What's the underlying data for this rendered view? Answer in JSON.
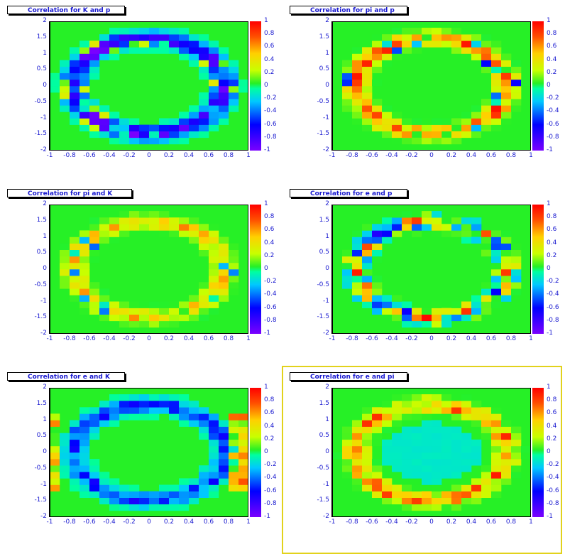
{
  "chart_data": [
    {
      "type": "heatmap",
      "title": "Correlation for K and p",
      "x": [
        -1,
        1
      ],
      "y": [
        -2,
        2
      ],
      "zlim": [
        -1,
        1
      ],
      "pattern": "ring_negative"
    },
    {
      "type": "heatmap",
      "title": "Correlation for pi and p",
      "x": [
        -1,
        1
      ],
      "y": [
        -2,
        2
      ],
      "zlim": [
        -1,
        1
      ],
      "pattern": "ring_positive"
    },
    {
      "type": "heatmap",
      "title": "Correlation for pi and K",
      "x": [
        -1,
        1
      ],
      "y": [
        -2,
        2
      ],
      "zlim": [
        -1,
        1
      ],
      "pattern": "ring_yellow"
    },
    {
      "type": "heatmap",
      "title": "Correlation for e and p",
      "x": [
        -1,
        1
      ],
      "y": [
        -2,
        2
      ],
      "zlim": [
        -1,
        1
      ],
      "pattern": "ring_mixed"
    },
    {
      "type": "heatmap",
      "title": "Correlation for e and K",
      "x": [
        -1,
        1
      ],
      "y": [
        -2,
        2
      ],
      "zlim": [
        -1,
        1
      ],
      "pattern": "ring_cyan"
    },
    {
      "type": "heatmap",
      "title": "Correlation for e and pi",
      "x": [
        -1,
        1
      ],
      "y": [
        -2,
        2
      ],
      "zlim": [
        -1,
        1
      ],
      "pattern": "ring_hot"
    }
  ],
  "axes": {
    "x_ticks": [
      "-1",
      "-0.8",
      "-0.6",
      "-0.4",
      "-0.2",
      "0",
      "0.2",
      "0.4",
      "0.6",
      "0.8",
      "1"
    ],
    "y_ticks": [
      "2",
      "1.5",
      "1",
      "0.5",
      "0",
      "-0.5",
      "-1",
      "-1.5",
      "-2"
    ],
    "z_ticks": [
      "1",
      "0.8",
      "0.6",
      "0.4",
      "0.2",
      "0",
      "-0.2",
      "-0.4",
      "-0.6",
      "-0.8",
      "-1"
    ]
  },
  "colors": {
    "background": "#26f026",
    "title_text": "#1a1ad0",
    "selected_frame": "#e2d21c"
  }
}
